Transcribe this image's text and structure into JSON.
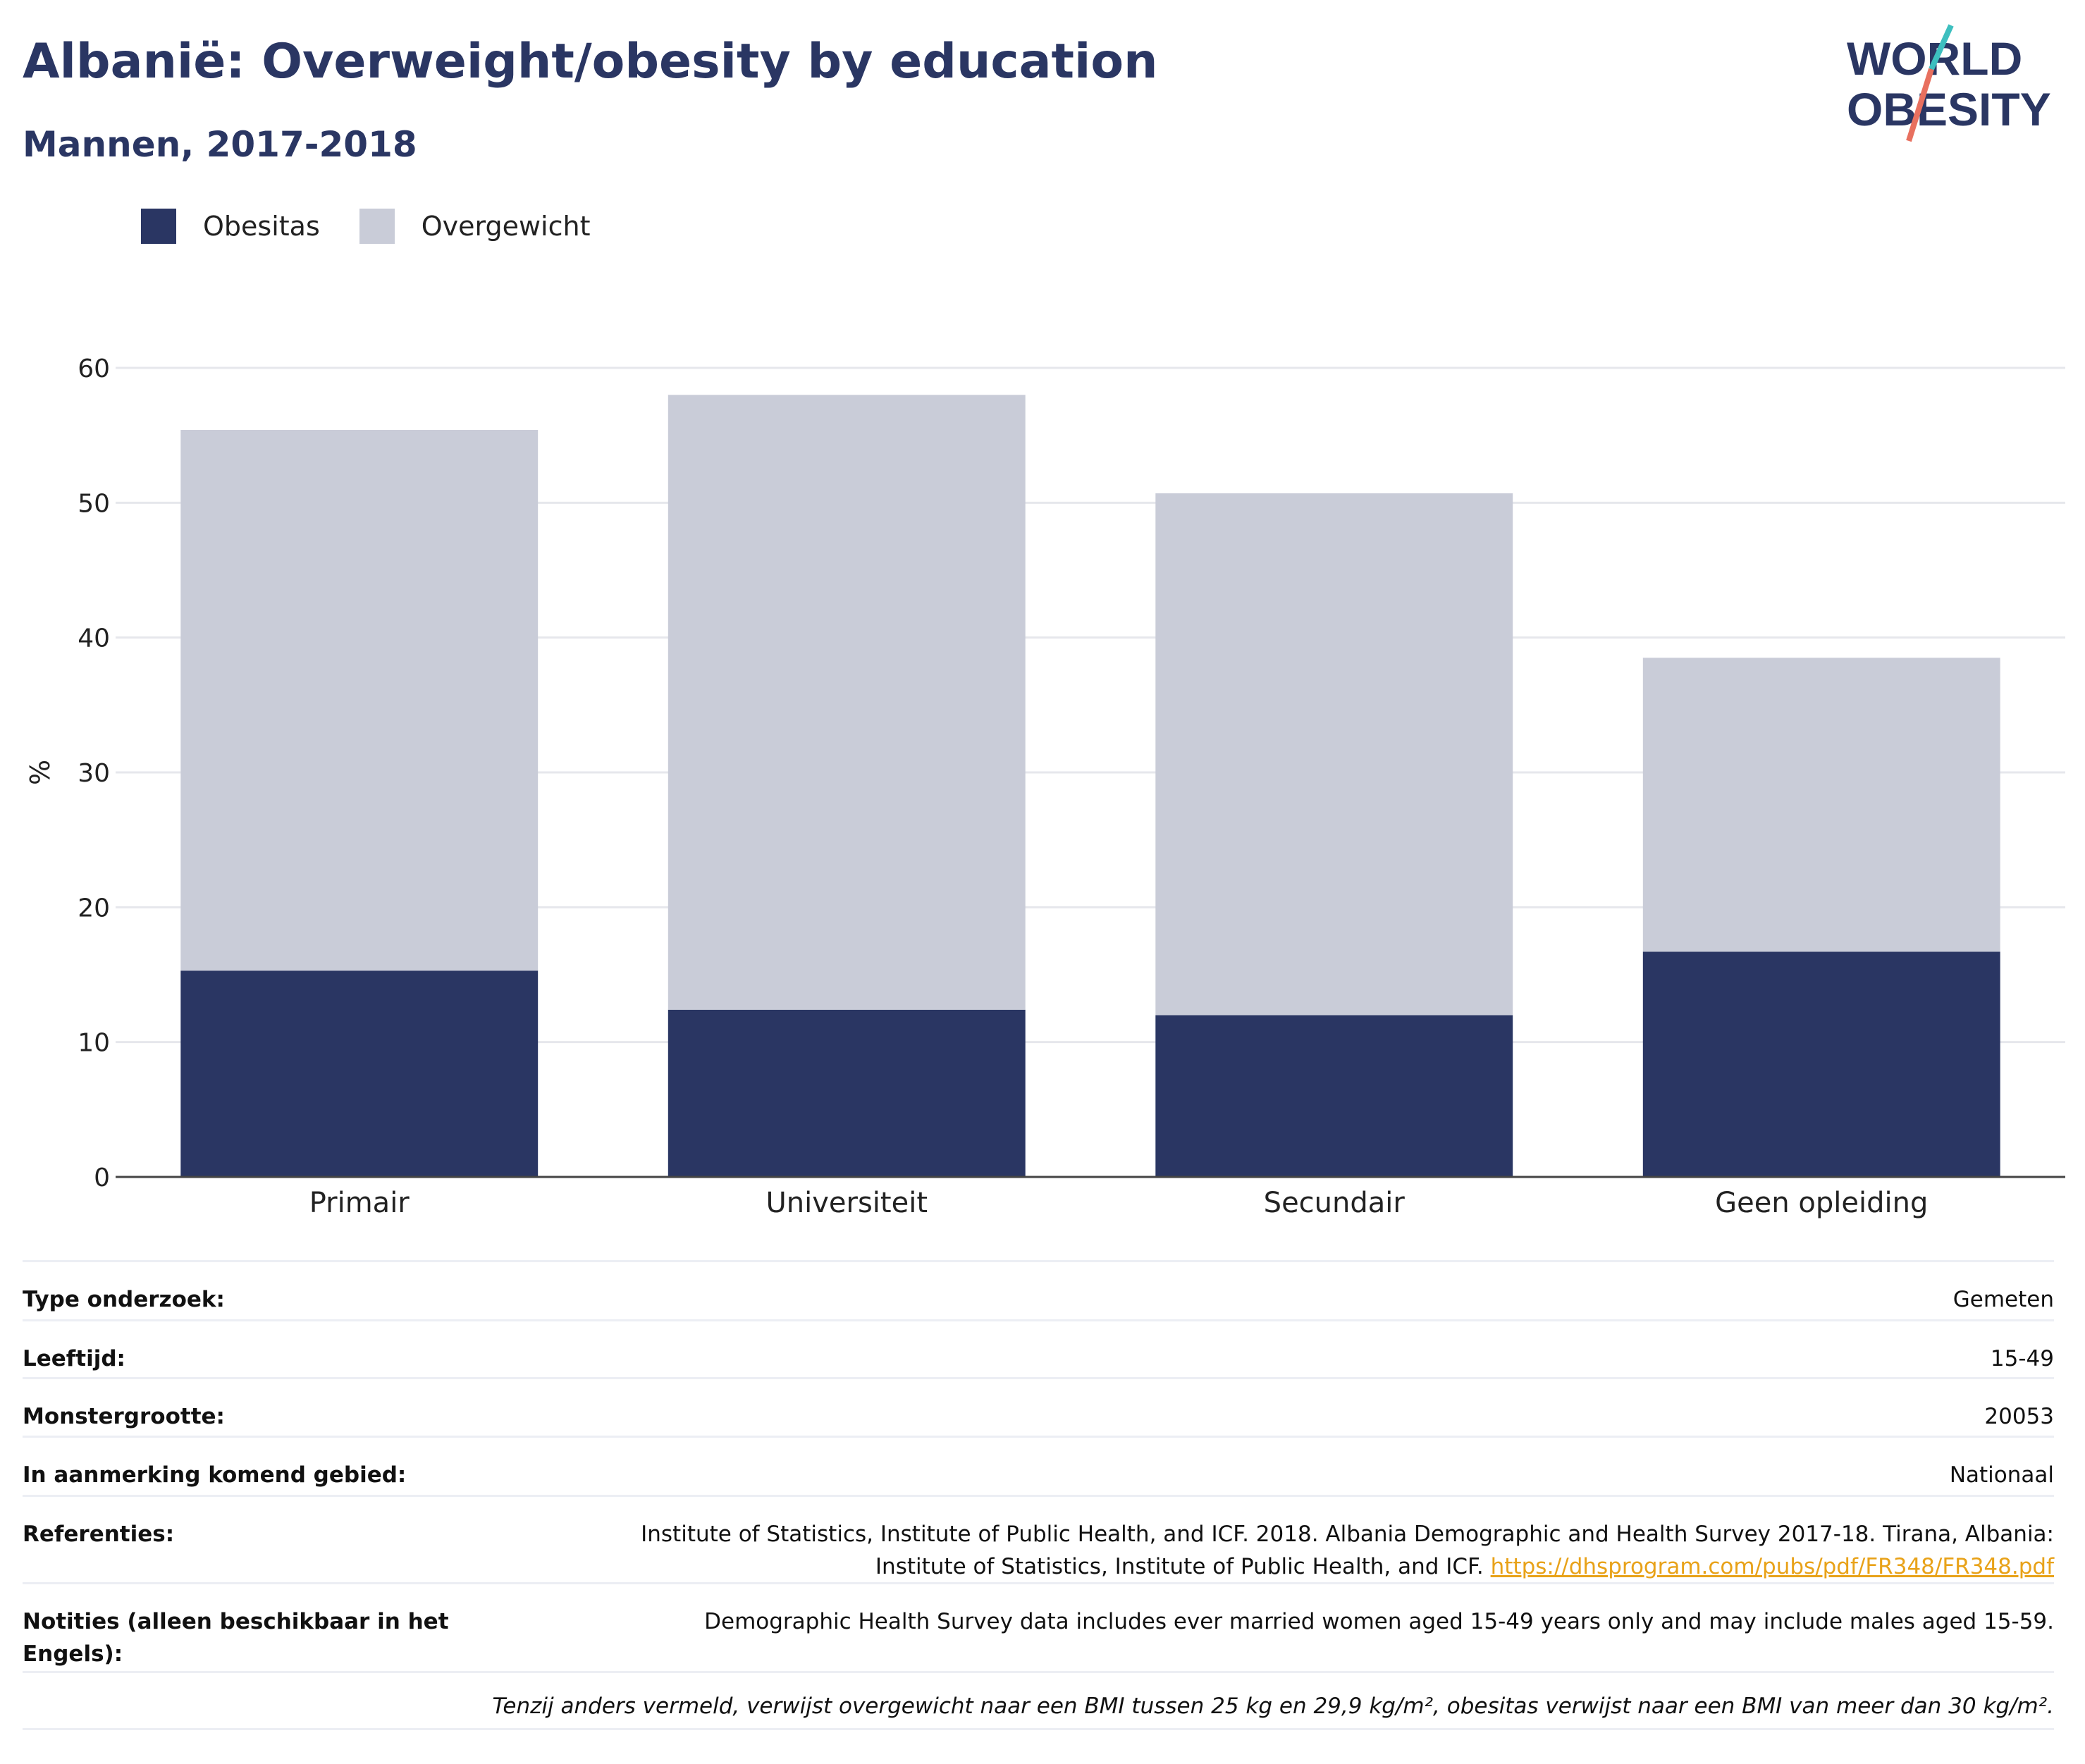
{
  "header": {
    "title": "Albanië: Overweight/obesity by education",
    "subtitle": "Mannen, 2017-2018"
  },
  "logo": {
    "line1": "WORLD",
    "line2": "OBESITY"
  },
  "legend": [
    {
      "label": "Obesitas",
      "color": "#2a3663"
    },
    {
      "label": "Overgewicht",
      "color": "#c9ccd8"
    }
  ],
  "chart_data": {
    "type": "bar",
    "stacked": true,
    "categories": [
      "Primair",
      "Universiteit",
      "Secundair",
      "Geen opleiding"
    ],
    "series": [
      {
        "name": "Obesitas",
        "values": [
          15.3,
          12.4,
          12.0,
          16.7
        ],
        "color": "#2a3663"
      },
      {
        "name": "Overgewicht",
        "values": [
          40.1,
          45.6,
          38.7,
          21.8
        ],
        "color": "#c9ccd8"
      }
    ],
    "title": "",
    "xlabel": "",
    "ylabel": "%",
    "ylim": [
      0,
      60
    ],
    "yticks": [
      0,
      10,
      20,
      30,
      40,
      50,
      60
    ],
    "grid": true,
    "legend_position": "top-left"
  },
  "details": {
    "rows": [
      {
        "key": "Type onderzoek:",
        "value": "Gemeten"
      },
      {
        "key": "Leeftijd:",
        "value": "15-49"
      },
      {
        "key": "Monstergrootte:",
        "value": "20053"
      },
      {
        "key": "In aanmerking komend gebied:",
        "value": "Nationaal"
      }
    ],
    "references": {
      "key": "Referenties:",
      "line1": "Institute of Statistics, Institute of Public Health, and ICF. 2018. Albania Demographic and Health Survey 2017-18. Tirana, Albania:",
      "line2": "Institute of Statistics, Institute of Public Health, and ICF.",
      "link": "https://dhsprogram.com/pubs/pdf/FR348/FR348.pdf"
    },
    "notes": {
      "key": "Notities (alleen beschikbaar in het Engels):",
      "value": "Demographic Health Survey data includes ever married women aged 15-49 years only and may include males aged 15-59."
    },
    "footnote": "Tenzij anders vermeld, verwijst overgewicht naar een BMI tussen 25 kg en 29,9 kg/m², obesitas verwijst naar een BMI van meer dan 30 kg/m²."
  }
}
